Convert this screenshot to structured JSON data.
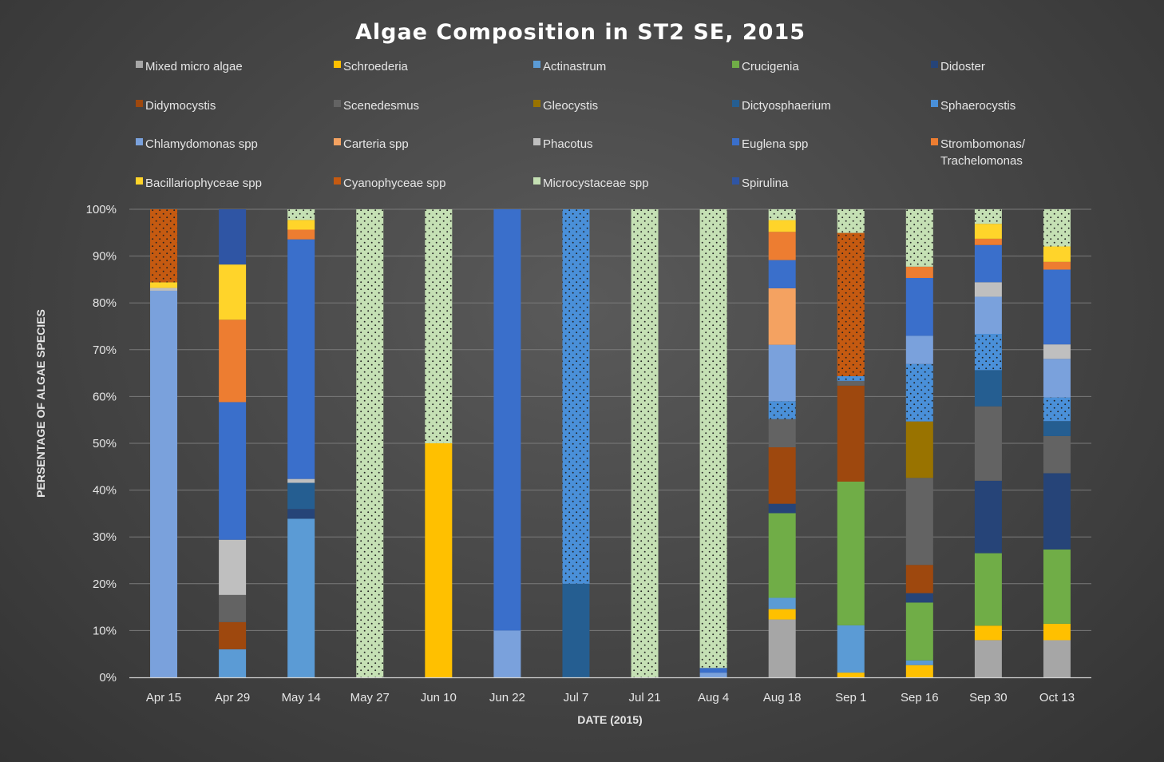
{
  "chart_data": {
    "type": "bar",
    "stacked": "percent",
    "title": "Algae Composition in ST2 SE, 2015",
    "xlabel": "DATE (2015)",
    "ylabel": "PERSENTAGE OF ALGAE SPECIES",
    "ylim": [
      0,
      100
    ],
    "y_ticks": [
      "0%",
      "10%",
      "20%",
      "30%",
      "40%",
      "50%",
      "60%",
      "70%",
      "80%",
      "90%",
      "100%"
    ],
    "grid": true,
    "legend_position": "top",
    "categories": [
      "Apr 15",
      "Apr 29",
      "May 14",
      "May 27",
      "Jun 10",
      "Jun 22",
      "Jul 7",
      "Jul 21",
      "Aug 4",
      "Aug 18",
      "Sep 1",
      "Sep 16",
      "Sep 30",
      "Oct 13"
    ],
    "series": [
      {
        "name": "Mixed micro algae",
        "color": "#a6a6a6",
        "pattern": "none",
        "values": [
          0,
          0,
          0,
          0,
          0,
          0,
          0,
          0,
          0,
          12.3,
          0,
          0,
          7.7,
          7.7
        ]
      },
      {
        "name": "Schroederia",
        "color": "#ffc000",
        "pattern": "none",
        "values": [
          0,
          0,
          0,
          0,
          50,
          0,
          0,
          0,
          0,
          2.2,
          1,
          2.6,
          3,
          3.4
        ]
      },
      {
        "name": "Actinastrum",
        "color": "#5b9bd5",
        "pattern": "none",
        "values": [
          0,
          6,
          32.7,
          0,
          0,
          0,
          0,
          0,
          0,
          2.4,
          10,
          1,
          0,
          0
        ]
      },
      {
        "name": "Crucigenia",
        "color": "#70ad47",
        "pattern": "none",
        "values": [
          0,
          0,
          0,
          0,
          0,
          0,
          0,
          0,
          0,
          18,
          30.4,
          12.3,
          15,
          15.4
        ]
      },
      {
        "name": "Didoster",
        "color": "#264478",
        "pattern": "none",
        "values": [
          0,
          0,
          2,
          0,
          0,
          0,
          0,
          0,
          0,
          2,
          0,
          2,
          15,
          15.8
        ]
      },
      {
        "name": "Didymocystis",
        "color": "#9e480e",
        "pattern": "none",
        "values": [
          0,
          5.8,
          0,
          0,
          0,
          0,
          0,
          0,
          0,
          12,
          20.3,
          6,
          0,
          0
        ]
      },
      {
        "name": "Scenedesmus",
        "color": "#636363",
        "pattern": "none",
        "values": [
          0,
          5.8,
          0,
          0,
          0,
          0,
          0,
          0,
          0,
          6,
          1,
          18.5,
          15.4,
          7.7
        ]
      },
      {
        "name": "Gleocystis",
        "color": "#997300",
        "pattern": "none",
        "values": [
          0,
          0,
          0,
          0,
          0,
          0,
          0,
          0,
          0,
          0,
          0,
          12,
          0,
          0
        ]
      },
      {
        "name": "Dictyosphaerium",
        "color": "#255e91",
        "pattern": "none",
        "values": [
          0,
          0,
          5.4,
          0,
          0,
          0,
          20,
          0,
          0,
          0,
          0,
          0,
          7.5,
          3.1
        ]
      },
      {
        "name": "Sphaerocystis",
        "color": "#4a90d9",
        "pattern": "dots",
        "values": [
          0,
          0,
          0,
          0,
          0,
          0,
          80,
          0,
          0,
          3.8,
          1,
          12.2,
          7.5,
          4.9
        ]
      },
      {
        "name": "Chlamydomonas spp",
        "color": "#7aa1dc",
        "pattern": "none",
        "values": [
          82.6,
          0,
          0,
          0,
          0,
          10,
          0,
          0,
          1,
          12,
          0,
          6,
          7.7,
          8
        ]
      },
      {
        "name": "Carteria spp",
        "color": "#f4a261",
        "pattern": "none",
        "values": [
          0,
          0,
          0,
          0,
          0,
          0,
          0,
          0,
          0,
          12,
          0,
          0,
          0,
          0
        ]
      },
      {
        "name": "Phacotus",
        "color": "#bfbfbf",
        "pattern": "none",
        "values": [
          0.6,
          11.8,
          0.8,
          0,
          0,
          0,
          0,
          0,
          0,
          0,
          0,
          0,
          3,
          3
        ]
      },
      {
        "name": "Euglena spp",
        "color": "#3a6fcb",
        "pattern": "none",
        "values": [
          0,
          29.4,
          49.4,
          0,
          0,
          90,
          0,
          0,
          1,
          6,
          0,
          12.3,
          7.7,
          15.5
        ]
      },
      {
        "name": "Strombomonas/ Trachelomonas",
        "color": "#ed7d31",
        "pattern": "none",
        "values": [
          0,
          17.6,
          2,
          0,
          0,
          0,
          0,
          0,
          0,
          6,
          0,
          2.4,
          1.3,
          1.6
        ]
      },
      {
        "name": "Bacillariophyceae spp",
        "color": "#ffd42a",
        "pattern": "none",
        "values": [
          1.2,
          11.8,
          2,
          0,
          0,
          0,
          0,
          0,
          0,
          2.5,
          0,
          0,
          3.1,
          3.2
        ]
      },
      {
        "name": "Cyanophyceae spp",
        "color": "#c55a11",
        "pattern": "dots",
        "values": [
          15.6,
          0,
          0,
          0,
          0,
          0,
          0,
          0,
          0,
          0,
          30.3,
          0,
          0,
          0
        ]
      },
      {
        "name": "Microcystaceae spp",
        "color": "#c5e0b4",
        "pattern": "dots",
        "values": [
          0,
          0,
          2.2,
          100,
          50,
          0,
          0,
          100,
          98,
          2.3,
          5,
          12.2,
          3,
          7.7
        ]
      },
      {
        "name": "Spirulina",
        "color": "#2f55a4",
        "pattern": "none",
        "values": [
          0,
          11.8,
          0,
          0,
          0,
          0,
          0,
          0,
          0,
          0,
          0,
          0,
          0,
          0
        ]
      }
    ]
  }
}
